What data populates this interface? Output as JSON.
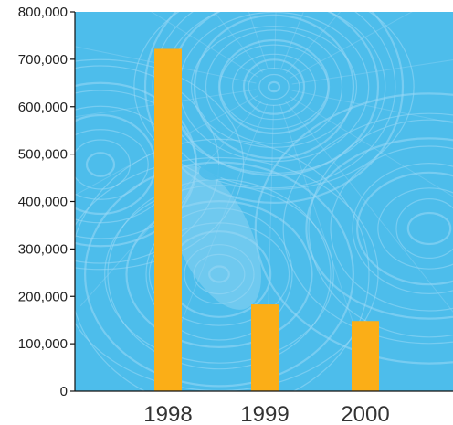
{
  "chart_data": {
    "type": "bar",
    "categories": [
      "1998",
      "1999",
      "2000"
    ],
    "values": [
      722000,
      183000,
      148000
    ],
    "ylim": [
      0,
      800000
    ],
    "yticks": [
      0,
      100000,
      200000,
      300000,
      400000,
      500000,
      600000,
      700000,
      800000
    ],
    "ytick_labels": [
      "0",
      "100,000",
      "200,000",
      "300,000",
      "400,000",
      "500,000",
      "600,000",
      "700,000",
      "800,000"
    ],
    "grid": false,
    "legend": "none",
    "colors": {
      "bar": "#FBAE17",
      "plot_background": "#4DBDEB",
      "texture": "#9AD8F5",
      "axis": "#111111"
    },
    "background_image": "tree-rings-texture"
  }
}
